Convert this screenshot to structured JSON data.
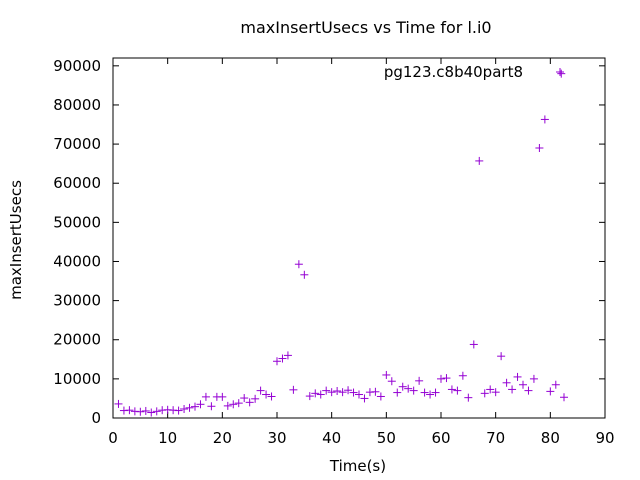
{
  "chart_data": {
    "type": "scatter",
    "title": "maxInsertUsecs vs Time for l.i0",
    "xlabel": "Time(s)",
    "ylabel": "maxInsertUsecs",
    "xlim": [
      0,
      90
    ],
    "ylim": [
      0,
      92000
    ],
    "xticks": [
      0,
      10,
      20,
      30,
      40,
      50,
      60,
      70,
      80,
      90
    ],
    "yticks": [
      0,
      10000,
      20000,
      30000,
      40000,
      50000,
      60000,
      70000,
      80000,
      90000
    ],
    "grid": false,
    "legend_position": "top-right",
    "marker": "plus",
    "series": [
      {
        "name": "pg123.c8b40part8",
        "color": "#9400d3",
        "points": [
          [
            1,
            3600
          ],
          [
            2,
            1900
          ],
          [
            3,
            2000
          ],
          [
            4,
            1700
          ],
          [
            5,
            1600
          ],
          [
            6,
            1800
          ],
          [
            7,
            1400
          ],
          [
            8,
            1700
          ],
          [
            9,
            2000
          ],
          [
            10,
            2100
          ],
          [
            11,
            2000
          ],
          [
            12,
            1900
          ],
          [
            13,
            2300
          ],
          [
            14,
            2600
          ],
          [
            15,
            2900
          ],
          [
            16,
            3500
          ],
          [
            17,
            5400
          ],
          [
            18,
            3000
          ],
          [
            19,
            5400
          ],
          [
            20,
            5400
          ],
          [
            21,
            3100
          ],
          [
            22,
            3500
          ],
          [
            23,
            3800
          ],
          [
            24,
            5100
          ],
          [
            25,
            4000
          ],
          [
            26,
            4900
          ],
          [
            27,
            7000
          ],
          [
            28,
            6000
          ],
          [
            29,
            5500
          ],
          [
            30,
            14500
          ],
          [
            31,
            15200
          ],
          [
            32,
            16000
          ],
          [
            33,
            7200
          ],
          [
            34,
            39300
          ],
          [
            35,
            36600
          ],
          [
            36,
            5600
          ],
          [
            37,
            6300
          ],
          [
            38,
            6000
          ],
          [
            39,
            7000
          ],
          [
            40,
            6600
          ],
          [
            41,
            6900
          ],
          [
            42,
            6600
          ],
          [
            43,
            7100
          ],
          [
            44,
            6500
          ],
          [
            45,
            6000
          ],
          [
            46,
            5000
          ],
          [
            47,
            6600
          ],
          [
            48,
            6700
          ],
          [
            49,
            5500
          ],
          [
            50,
            11000
          ],
          [
            51,
            9400
          ],
          [
            52,
            6500
          ],
          [
            53,
            8000
          ],
          [
            54,
            7500
          ],
          [
            55,
            7000
          ],
          [
            56,
            9500
          ],
          [
            57,
            6500
          ],
          [
            58,
            6000
          ],
          [
            59,
            6500
          ],
          [
            60,
            10000
          ],
          [
            61,
            10200
          ],
          [
            62,
            7300
          ],
          [
            63,
            7000
          ],
          [
            64,
            10800
          ],
          [
            65,
            5200
          ],
          [
            66,
            18800
          ],
          [
            67,
            65700
          ],
          [
            68,
            6300
          ],
          [
            69,
            7300
          ],
          [
            70,
            6600
          ],
          [
            71,
            15800
          ],
          [
            72,
            9000
          ],
          [
            73,
            7300
          ],
          [
            74,
            10500
          ],
          [
            75,
            8500
          ],
          [
            76,
            7000
          ],
          [
            77,
            10000
          ],
          [
            78,
            69000
          ],
          [
            79,
            76300
          ],
          [
            80,
            6800
          ],
          [
            81,
            8500
          ],
          [
            82,
            88000
          ],
          [
            82.5,
            5300
          ]
        ]
      }
    ]
  }
}
